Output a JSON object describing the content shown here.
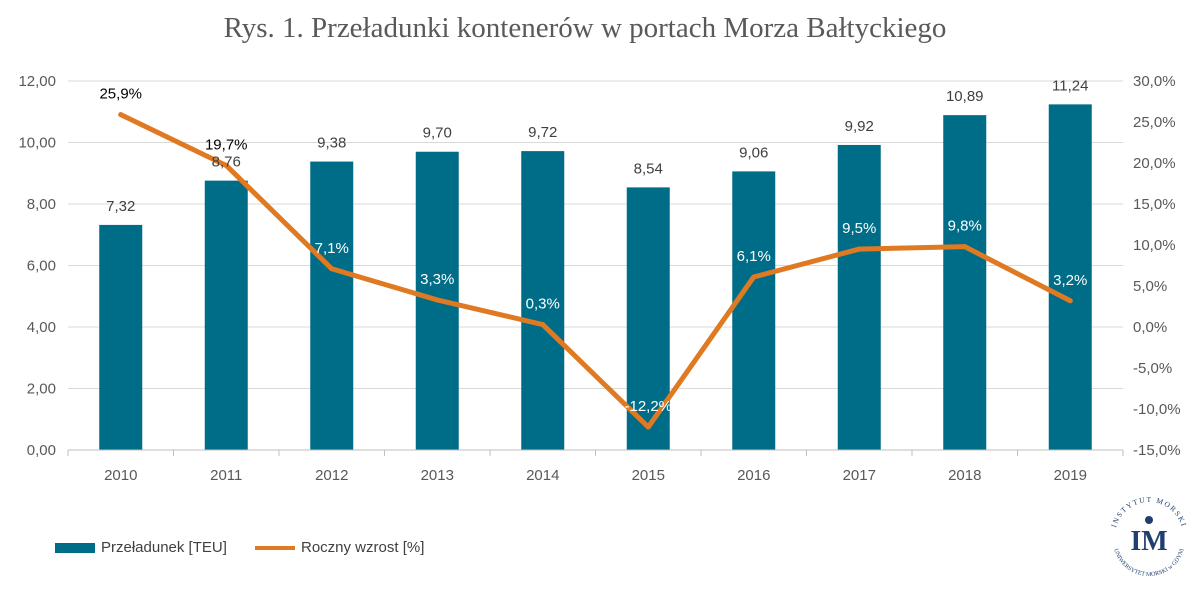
{
  "chart_data": {
    "type": "bar",
    "title": "Rys. 1. Przeładunki kontenerów w portach Morza Bałtyckiego",
    "categories": [
      "2010",
      "2011",
      "2012",
      "2013",
      "2014",
      "2015",
      "2016",
      "2017",
      "2018",
      "2019"
    ],
    "series": [
      {
        "name": "Przeładunek [TEU]",
        "type": "bar",
        "axis": "left",
        "values": [
          7.32,
          8.76,
          9.38,
          9.7,
          9.72,
          8.54,
          9.06,
          9.92,
          10.89,
          11.24
        ],
        "labels": [
          "7,32",
          "8,76",
          "9,38",
          "9,70",
          "9,72",
          "8,54",
          "9,06",
          "9,92",
          "10,89",
          "11,24"
        ],
        "color": "#006d88"
      },
      {
        "name": "Roczny wzrost [%]",
        "type": "line",
        "axis": "right",
        "values": [
          25.9,
          19.7,
          7.1,
          3.3,
          0.3,
          -12.2,
          6.1,
          9.5,
          9.8,
          3.2
        ],
        "labels": [
          "25,9%",
          "19,7%",
          "7,1%",
          "3,3%",
          "0,3%",
          "-12,2%",
          "6,1%",
          "9,5%",
          "9,8%",
          "3,2%"
        ],
        "color": "#e07a22"
      }
    ],
    "y_left": {
      "ylim": [
        0,
        12
      ],
      "ticks": [
        0,
        2,
        4,
        6,
        8,
        10,
        12
      ],
      "tick_labels": [
        "0,00",
        "2,00",
        "4,00",
        "6,00",
        "8,00",
        "10,00",
        "12,00"
      ]
    },
    "y_right": {
      "ylim": [
        -15,
        30
      ],
      "ticks": [
        -15,
        -10,
        -5,
        0,
        5,
        10,
        15,
        20,
        25,
        30
      ],
      "tick_labels": [
        "-15,0%",
        "-10,0%",
        "-5,0%",
        "0,0%",
        "5,0%",
        "10,0%",
        "15,0%",
        "20,0%",
        "25,0%",
        "30,0%"
      ]
    },
    "grid": true,
    "legend_position": "bottom-left"
  },
  "logo": {
    "text_top": "INSTYTUT MORSKI",
    "text_bottom": "UNIWERSYTET MORSKI w GDYNI",
    "letters": "IM"
  }
}
